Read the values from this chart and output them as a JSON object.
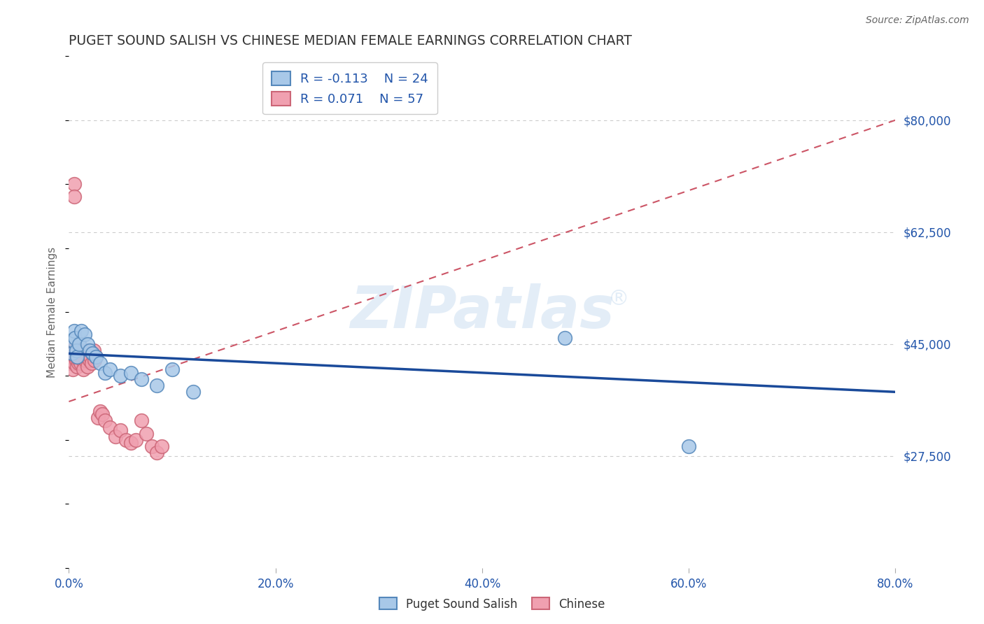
{
  "title": "PUGET SOUND SALISH VS CHINESE MEDIAN FEMALE EARNINGS CORRELATION CHART",
  "source": "Source: ZipAtlas.com",
  "ylabel": "Median Female Earnings",
  "xlim": [
    0.0,
    0.8
  ],
  "ylim": [
    10000,
    90000
  ],
  "xticks": [
    0.0,
    0.2,
    0.4,
    0.6,
    0.8
  ],
  "xtick_labels": [
    "0.0%",
    "20.0%",
    "40.0%",
    "60.0%",
    "80.0%"
  ],
  "ytick_values": [
    27500,
    45000,
    62500,
    80000
  ],
  "ytick_labels": [
    "$27,500",
    "$45,000",
    "$62,500",
    "$80,000"
  ],
  "gridline_color": "#cccccc",
  "background_color": "#ffffff",
  "puget_color": "#A8C8E8",
  "puget_edge_color": "#5588BB",
  "chinese_color": "#F0A0B0",
  "chinese_edge_color": "#CC6677",
  "blue_line_color": "#1A4A9A",
  "pink_line_color": "#CC5566",
  "r_puget": -0.113,
  "n_puget": 24,
  "r_chinese": 0.071,
  "n_chinese": 57,
  "puget_scatter_x": [
    0.003,
    0.004,
    0.005,
    0.006,
    0.007,
    0.008,
    0.01,
    0.012,
    0.015,
    0.018,
    0.02,
    0.023,
    0.026,
    0.03,
    0.035,
    0.04,
    0.05,
    0.06,
    0.07,
    0.085,
    0.1,
    0.12,
    0.48,
    0.6
  ],
  "puget_scatter_y": [
    43500,
    45500,
    47000,
    46000,
    44000,
    43000,
    45000,
    47000,
    46500,
    45000,
    44000,
    43500,
    43000,
    42000,
    40500,
    41000,
    40000,
    40500,
    39500,
    38500,
    41000,
    37500,
    46000,
    29000
  ],
  "chinese_scatter_x": [
    0.001,
    0.002,
    0.002,
    0.003,
    0.003,
    0.004,
    0.004,
    0.005,
    0.005,
    0.006,
    0.006,
    0.007,
    0.007,
    0.008,
    0.008,
    0.009,
    0.009,
    0.01,
    0.01,
    0.011,
    0.011,
    0.012,
    0.013,
    0.014,
    0.015,
    0.015,
    0.016,
    0.017,
    0.018,
    0.018,
    0.019,
    0.02,
    0.02,
    0.021,
    0.022,
    0.023,
    0.024,
    0.025,
    0.026,
    0.028,
    0.03,
    0.032,
    0.035,
    0.04,
    0.045,
    0.05,
    0.055,
    0.06,
    0.065,
    0.07,
    0.075,
    0.08,
    0.085,
    0.09,
    0.005,
    0.006,
    0.007
  ],
  "chinese_scatter_y": [
    42000,
    43000,
    44000,
    42500,
    43500,
    41000,
    44000,
    42000,
    70000,
    43000,
    44500,
    42500,
    43500,
    41500,
    43000,
    42000,
    44000,
    42500,
    43500,
    42000,
    44000,
    43000,
    42500,
    41000,
    43500,
    44000,
    42500,
    43000,
    41500,
    44000,
    43000,
    42500,
    44000,
    43000,
    42000,
    43500,
    44000,
    42500,
    43000,
    33500,
    34500,
    34000,
    33000,
    32000,
    30500,
    31500,
    30000,
    29500,
    30000,
    33000,
    31000,
    29000,
    28000,
    29000,
    68000,
    44000,
    43000
  ],
  "blue_trend_x": [
    0.0,
    0.8
  ],
  "blue_trend_y": [
    43500,
    37500
  ],
  "pink_trend_x": [
    0.0,
    0.8
  ],
  "pink_trend_y": [
    36000,
    80000
  ],
  "watermark_text": "ZIPatlas",
  "watermark_reg": "®",
  "bottom_legend_labels": [
    "Puget Sound Salish",
    "Chinese"
  ]
}
